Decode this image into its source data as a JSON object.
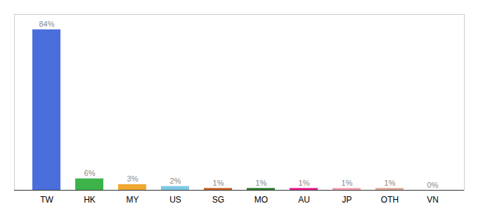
{
  "chart_data": {
    "type": "bar",
    "categories": [
      "TW",
      "HK",
      "MY",
      "US",
      "SG",
      "MO",
      "AU",
      "JP",
      "OTH",
      "VN"
    ],
    "values": [
      84,
      6,
      3,
      2,
      1,
      1,
      1,
      1,
      1,
      0
    ],
    "value_labels": [
      "84%",
      "6%",
      "3%",
      "2%",
      "1%",
      "1%",
      "1%",
      "1%",
      "1%",
      "0%"
    ],
    "colors": [
      "#4a6fdc",
      "#3db34a",
      "#f0a830",
      "#7ec8e3",
      "#c8622a",
      "#2e7d32",
      "#e91e8c",
      "#f4a0b0",
      "#dea898",
      "#cccccc"
    ],
    "ylim": [
      0,
      92
    ],
    "data_labels": true,
    "tick_labels": "x",
    "grid": false
  }
}
